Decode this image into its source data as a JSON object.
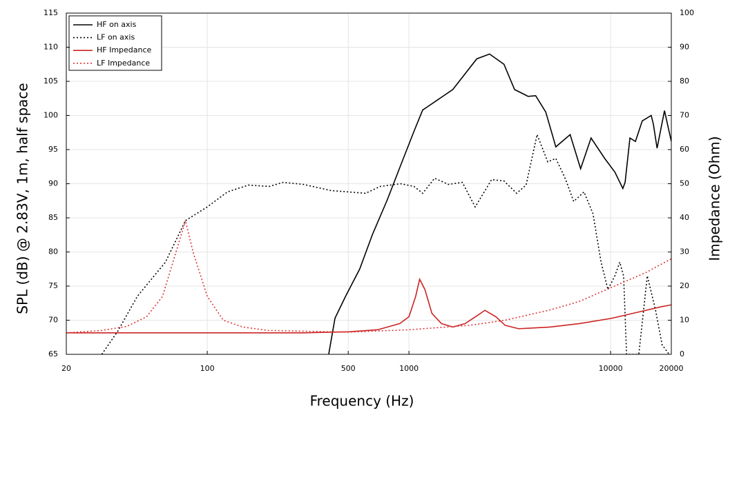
{
  "chart_data": {
    "type": "line",
    "x_label": "Frequency (Hz)",
    "y_label": "SPL (dB) @ 2.83V, 1m, half space",
    "y2_label": "Impedance (Ohm)",
    "xscale": "log",
    "xlim": [
      20,
      20000
    ],
    "xticks": [
      20,
      100,
      500,
      1000,
      10000,
      20000
    ],
    "ylim": [
      65,
      115
    ],
    "yticks": [
      65,
      70,
      75,
      80,
      85,
      90,
      95,
      100,
      105,
      110,
      115
    ],
    "y2lim": [
      0,
      100
    ],
    "y2ticks": [
      0,
      10,
      20,
      30,
      40,
      50,
      60,
      70,
      80,
      90,
      100
    ],
    "grid": true,
    "legend": "upper left",
    "series": [
      {
        "name": "HF on axis",
        "color": "#000000",
        "dash": "solid",
        "axis": "y",
        "x": [
          400,
          430,
          485,
          570,
          660,
          780,
          910,
          1060,
          1170,
          1240,
          1650,
          2170,
          2510,
          2960,
          3340,
          3900,
          4250,
          4770,
          5350,
          6300,
          7100,
          8000,
          9350,
          10500,
          11500,
          11800,
          12470,
          13280,
          14350,
          15900,
          16300,
          17000,
          18500,
          20000
        ],
        "values": [
          65,
          70.3,
          73.5,
          77.5,
          82.6,
          87.6,
          92.7,
          97.7,
          100.8,
          101.3,
          103.8,
          108.3,
          109,
          107.5,
          103.8,
          102.8,
          102.9,
          100.5,
          95.4,
          97.2,
          92.2,
          96.7,
          93.7,
          91.7,
          89.3,
          90.2,
          96.7,
          96.2,
          99.2,
          100,
          98.7,
          95.2,
          100.7,
          96.2
        ]
      },
      {
        "name": "LF on axis",
        "color": "#000000",
        "dash": "dotted",
        "axis": "y",
        "x": [
          30,
          36,
          45,
          62,
          78,
          100,
          126,
          160,
          203,
          238,
          300,
          410,
          610,
          720,
          910,
          1060,
          1170,
          1340,
          1570,
          1840,
          2130,
          2340,
          2570,
          2960,
          3420,
          3810,
          4320,
          4880,
          5350,
          5970,
          6560,
          7380,
          8180,
          8970,
          9700,
          10500,
          11100,
          11600,
          12000,
          13800,
          15200,
          16700,
          18000,
          19500
        ],
        "values": [
          65,
          68.4,
          73.5,
          78.5,
          84.6,
          86.6,
          88.8,
          89.8,
          89.6,
          90.2,
          89.9,
          89,
          88.6,
          89.6,
          90,
          89.6,
          88.6,
          90.8,
          89.9,
          90.2,
          86.6,
          88.6,
          90.6,
          90.4,
          88.6,
          89.8,
          97.2,
          93.2,
          93.7,
          90.7,
          87.4,
          88.8,
          85.6,
          78.5,
          74.5,
          76.5,
          78.5,
          76.5,
          65,
          65,
          76.5,
          71.5,
          66.4,
          65
        ]
      },
      {
        "name": "HF Impedance",
        "color": "#cc2222",
        "dash": "solid",
        "axis": "y2",
        "x": [
          20,
          100,
          300,
          500,
          700,
          900,
          1000,
          1080,
          1130,
          1200,
          1300,
          1450,
          1650,
          1900,
          2200,
          2380,
          2700,
          3000,
          3500,
          5000,
          7000,
          10000,
          14000,
          18000,
          20000
        ],
        "values": [
          6.3,
          6.3,
          6.3,
          6.6,
          7.2,
          9,
          11,
          17,
          22,
          19,
          12,
          9,
          8,
          9,
          11.5,
          12.9,
          11,
          8.5,
          7.5,
          8,
          9,
          10.5,
          12.5,
          14,
          14.5
        ]
      },
      {
        "name": "LF Impedance",
        "color": "#dd3333",
        "dash": "dotted",
        "axis": "y2",
        "x": [
          20,
          30,
          40,
          50,
          60,
          70,
          78,
          85,
          100,
          120,
          150,
          200,
          500,
          1000,
          2000,
          3000,
          5000,
          7000,
          10000,
          15000,
          20000
        ],
        "values": [
          6.3,
          7,
          8.2,
          11,
          17,
          30,
          39.2,
          30,
          17,
          10,
          8,
          7,
          6.5,
          7.2,
          8.5,
          10,
          13,
          15.5,
          19.5,
          24,
          28
        ]
      }
    ]
  }
}
